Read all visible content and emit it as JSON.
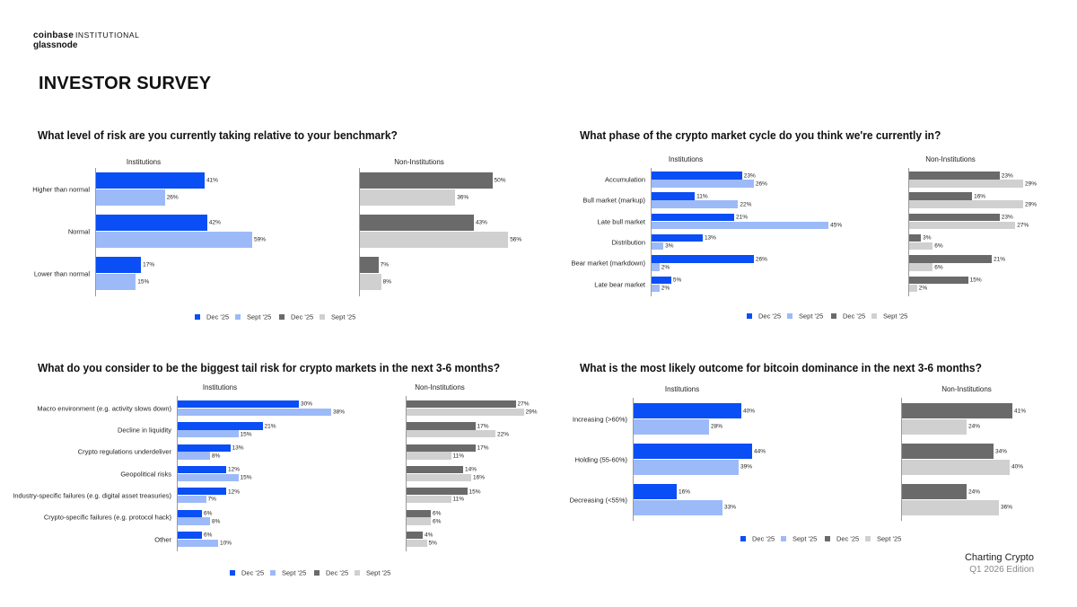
{
  "header": {
    "brand_coinbase": "coinbase",
    "brand_institutional": "INSTITUTIONAL",
    "brand_glassnode": "glassnode",
    "page_title": "INVESTOR SURVEY"
  },
  "footer": {
    "line1": "Charting Crypto",
    "line2": "Q1 2026 Edition"
  },
  "colors": {
    "inst_dec": "#0a4ef5",
    "inst_sept": "#9dbaf8",
    "non_dec": "#6a6a6a",
    "non_sept": "#d0d0d0"
  },
  "chart_data": [
    {
      "type": "bar",
      "title": "What level of risk are you currently taking relative to your benchmark?",
      "panels": [
        "Institutions",
        "Non-Institutions"
      ],
      "categories": [
        "Higher than normal",
        "Normal",
        "Lower than normal"
      ],
      "series": [
        {
          "name": "Dec '25",
          "group": "Institutions",
          "values": [
            41,
            42,
            17
          ],
          "labels": [
            "41%",
            "42%",
            "17%"
          ]
        },
        {
          "name": "Sept '25",
          "group": "Institutions",
          "values": [
            26,
            59,
            15
          ],
          "labels": [
            "26%",
            "59%",
            "15%"
          ]
        },
        {
          "name": "Dec '25",
          "group": "Non-Institutions",
          "values": [
            50,
            43,
            7
          ],
          "labels": [
            "50%",
            "43%",
            "7%"
          ]
        },
        {
          "name": "Sept '25",
          "group": "Non-Institutions",
          "values": [
            36,
            56,
            8
          ],
          "labels": [
            "36%",
            "56%",
            "8%"
          ]
        }
      ],
      "legend": [
        "Dec '25",
        "Sept '25",
        "Dec '25",
        "Sept '25"
      ],
      "legend_position": "bottom"
    },
    {
      "type": "bar",
      "title": "What phase of the crypto market cycle do you think we're currently in?",
      "panels": [
        "Institutions",
        "Non-Institutions"
      ],
      "categories": [
        "Accumulation",
        "Bull market (markup)",
        "Late bull market",
        "Distribution",
        "Bear market (markdown)",
        "Late bear market"
      ],
      "series": [
        {
          "name": "Dec '25",
          "group": "Institutions",
          "values": [
            23,
            11,
            21,
            13,
            26,
            5
          ],
          "labels": [
            "23%",
            "11%",
            "21%",
            "13%",
            "26%",
            "5%"
          ]
        },
        {
          "name": "Sept '25",
          "group": "Institutions",
          "values": [
            26,
            22,
            45,
            3,
            2,
            2
          ],
          "labels": [
            "26%",
            "22%",
            "45%",
            "3%",
            "2%",
            "2%"
          ]
        },
        {
          "name": "Dec '25",
          "group": "Non-Institutions",
          "values": [
            23,
            16,
            23,
            3,
            21,
            15
          ],
          "labels": [
            "23%",
            "16%",
            "23%",
            "3%",
            "21%",
            "15%"
          ]
        },
        {
          "name": "Sept '25",
          "group": "Non-Institutions",
          "values": [
            29,
            29,
            27,
            6,
            6,
            2
          ],
          "labels": [
            "29%",
            "29%",
            "27%",
            "6%",
            "6%",
            "2%"
          ]
        }
      ],
      "legend": [
        "Dec '25",
        "Sept '25",
        "Dec '25",
        "Sept '25"
      ],
      "legend_position": "bottom"
    },
    {
      "type": "bar",
      "title": "What do you consider to be the biggest tail risk for crypto markets in the next 3-6 months?",
      "panels": [
        "Institutions",
        "Non-Institutions"
      ],
      "categories": [
        "Macro environment (e.g. activity slows down)",
        "Decline in liquidity",
        "Crypto regulations underdeliver",
        "Geopolitical risks",
        "Industry-specific failures (e.g. digital asset treasuries)",
        "Crypto-specific failures (e.g. protocol hack)",
        "Other"
      ],
      "series": [
        {
          "name": "Dec '25",
          "group": "Institutions",
          "values": [
            30,
            21,
            13,
            12,
            12,
            6,
            6
          ],
          "labels": [
            "30%",
            "21%",
            "13%",
            "12%",
            "12%",
            "6%",
            "6%"
          ]
        },
        {
          "name": "Sept '25",
          "group": "Institutions",
          "values": [
            38,
            15,
            8,
            15,
            7,
            8,
            10
          ],
          "labels": [
            "38%",
            "15%",
            "8%",
            "15%",
            "7%",
            "8%",
            "10%"
          ]
        },
        {
          "name": "Dec '25",
          "group": "Non-Institutions",
          "values": [
            27,
            17,
            17,
            14,
            15,
            6,
            4
          ],
          "labels": [
            "27%",
            "17%",
            "17%",
            "14%",
            "15%",
            "6%",
            "4%"
          ]
        },
        {
          "name": "Sept '25",
          "group": "Non-Institutions",
          "values": [
            29,
            22,
            11,
            16,
            11,
            6,
            5
          ],
          "labels": [
            "29%",
            "22%",
            "11%",
            "16%",
            "11%",
            "6%",
            "5%"
          ]
        }
      ],
      "legend": [
        "Dec '25",
        "Sept '25",
        "Dec '25",
        "Sept '25"
      ],
      "legend_position": "bottom"
    },
    {
      "type": "bar",
      "title": "What is the most likely outcome for bitcoin dominance in the next 3-6 months?",
      "panels": [
        "Institutions",
        "Non-Institutions"
      ],
      "categories": [
        "Increasing (>60%)",
        "Holding (55-60%)",
        "Decreasing (<55%)"
      ],
      "series": [
        {
          "name": "Dec '25",
          "group": "Institutions",
          "values": [
            40,
            44,
            16
          ],
          "labels": [
            "40%",
            "44%",
            "16%"
          ]
        },
        {
          "name": "Sept '25",
          "group": "Institutions",
          "values": [
            28,
            39,
            33
          ],
          "labels": [
            "28%",
            "39%",
            "33%"
          ]
        },
        {
          "name": "Dec '25",
          "group": "Non-Institutions",
          "values": [
            41,
            34,
            24
          ],
          "labels": [
            "41%",
            "34%",
            "24%"
          ]
        },
        {
          "name": "Sept '25",
          "group": "Non-Institutions",
          "values": [
            24,
            40,
            36
          ],
          "labels": [
            "24%",
            "40%",
            "36%"
          ]
        }
      ],
      "legend": [
        "Dec '25",
        "Sept '25",
        "Dec '25",
        "Sept '25"
      ],
      "legend_position": "bottom"
    }
  ]
}
